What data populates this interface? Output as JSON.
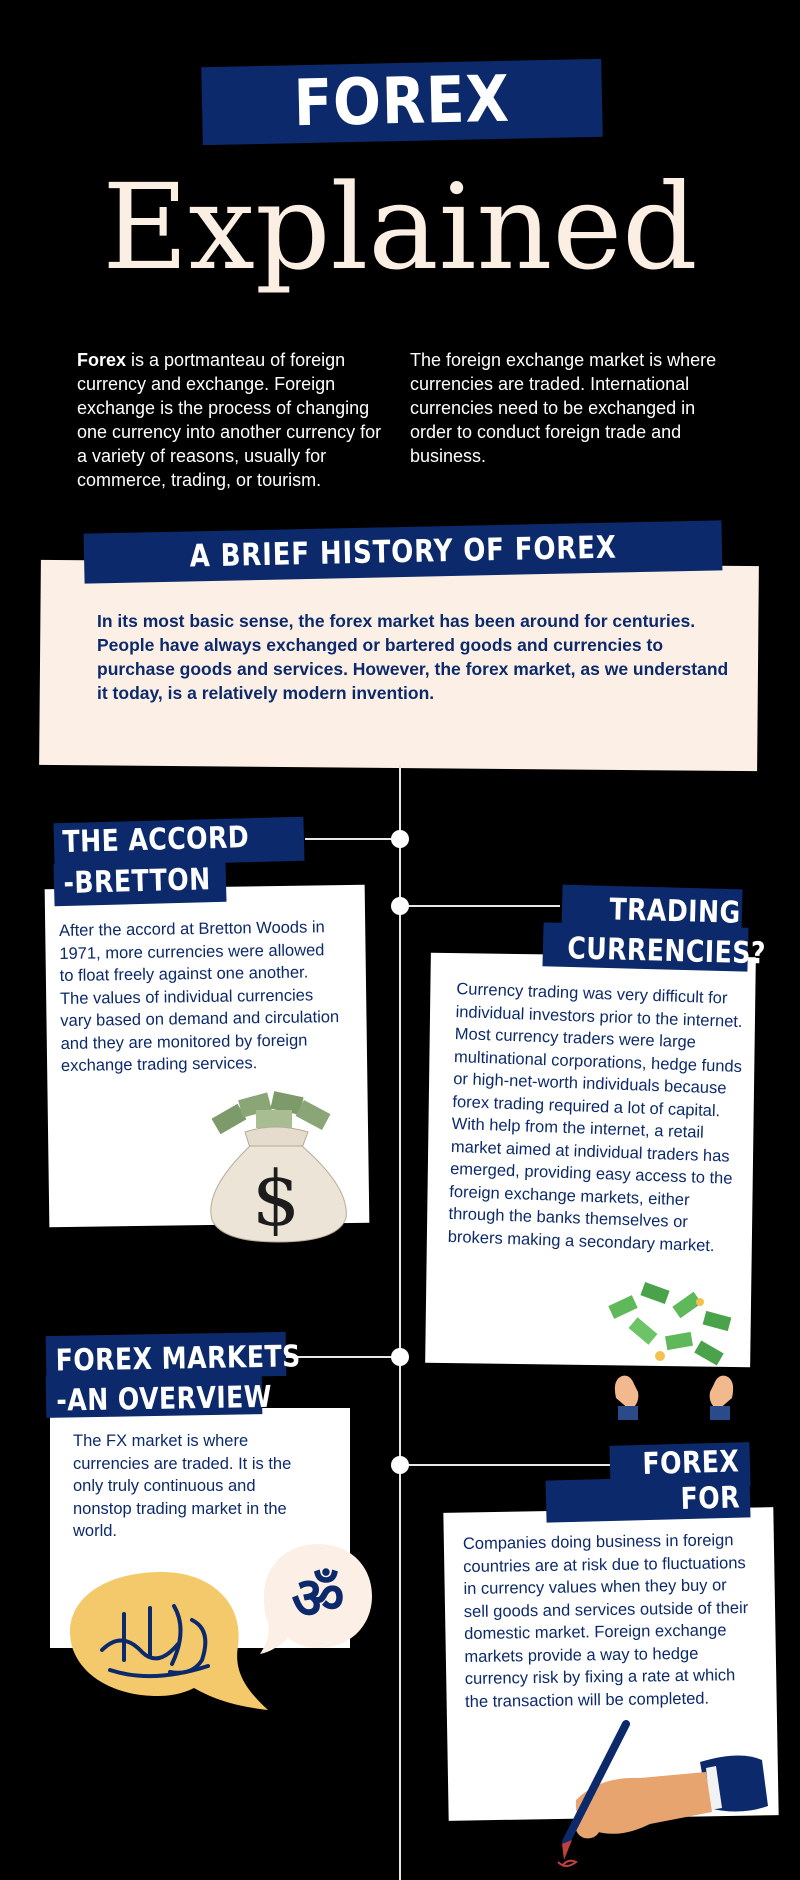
{
  "header": {
    "banner": "FOREX",
    "title": "Explained"
  },
  "intro": {
    "left_bold": "Forex",
    "left_rest": " is a portmanteau of foreign currency and exchange. Foreign exchange is the process of changing one currency into another currency for a variety of reasons, usually for commerce, trading, or tourism.",
    "right": "The foreign exchange market is where currencies are traded. International currencies need to be exchanged in order to conduct foreign trade and business."
  },
  "history": {
    "title": "A BRIEF HISTORY OF FOREX",
    "text": "In its most basic sense, the forex market has been around for centuries. People have always exchanged or bartered goods and currencies to purchase goods and services. However, the forex market, as we understand it today, is a relatively modern invention."
  },
  "sections": {
    "accord": {
      "title_line1": "THE ACCORD",
      "title_line2": "-BRETTON",
      "text": "After the accord at Bretton Woods in 1971, more currencies were allowed to float freely against one another. The values of individual currencies vary based on demand and circulation and they are monitored by foreign exchange trading services."
    },
    "trading": {
      "title_line1": "TRADING",
      "title_line2": "CURRENCIES?",
      "text": "Currency trading was very difficult for individual investors prior to the internet. Most currency traders were large multinational corporations, hedge funds or high-net-worth individuals because forex trading required a lot of capital. With help from the internet, a retail market aimed at individual traders has emerged, providing easy access to the foreign exchange markets, either through the banks themselves or brokers making a secondary market."
    },
    "markets": {
      "title_line1": "FOREX MARKETS",
      "title_line2": "-AN OVERVIEW",
      "text": "The FX market is where currencies are traded. It is the only truly continuous and nonstop trading market in the world."
    },
    "edging": {
      "title_line1": "FOREX",
      "title_line2": "FOR EDGING",
      "text": "Companies doing business in foreign countries are at risk due to fluctuations in currency values when they buy or sell goods and services outside of their domestic market. Foreign exchange markets provide a way to hedge currency risk by fixing a rate at which the transaction will be completed."
    }
  },
  "icons": {
    "money_bag": "money-bag-icon",
    "money_hands": "money-hands-icon",
    "arabic_bubble": "arabic-calligraphy-bubble-icon",
    "om_bubble": "om-bubble-icon",
    "signing_hand": "signing-hand-icon"
  },
  "colors": {
    "navy": "#0c2a6b",
    "cream": "#fcf0e6",
    "background": "#000000",
    "gold": "#f4c96b"
  }
}
